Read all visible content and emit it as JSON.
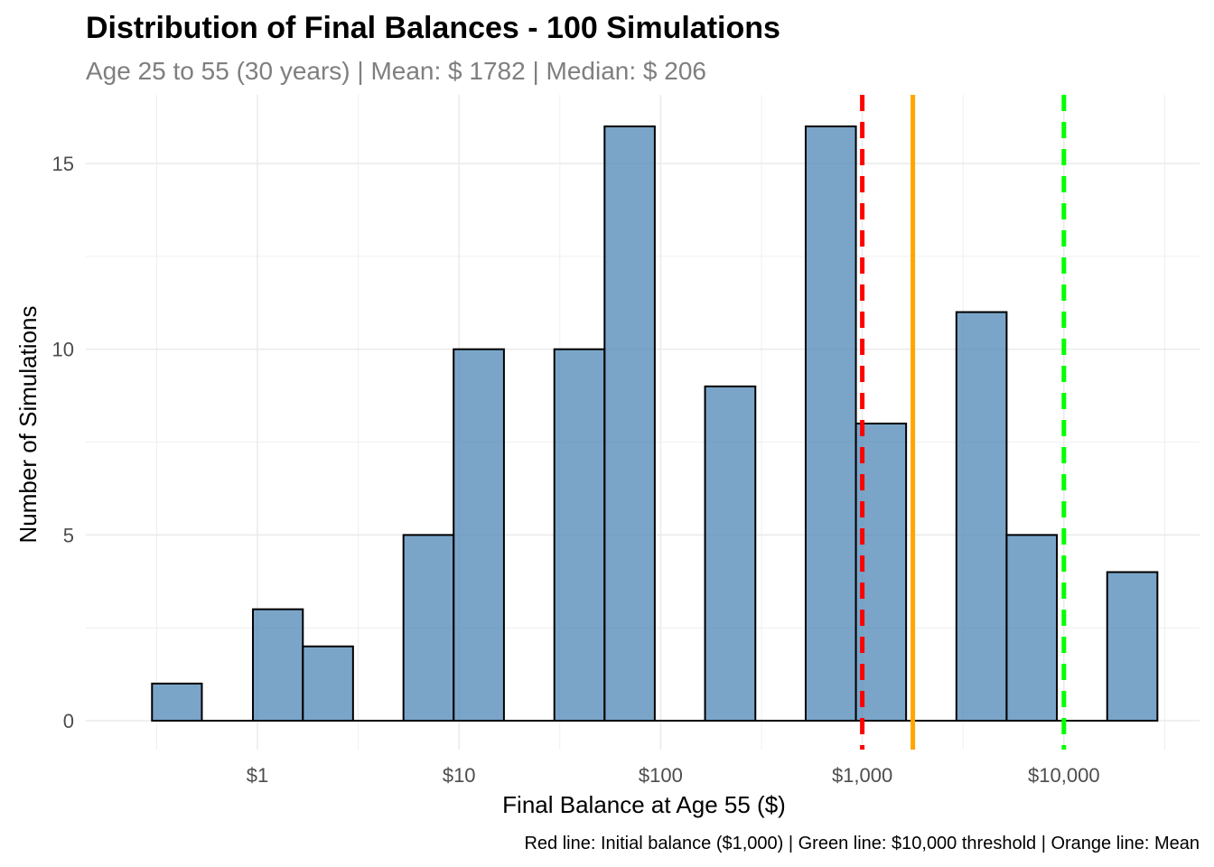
{
  "chart_data": {
    "type": "bar",
    "subtype": "histogram",
    "title": "Distribution of Final Balances - 100 Simulations",
    "subtitle": "Age 25 to 55 (30 years) | Mean: $ 1782 | Median: $ 206",
    "xlabel": "Final Balance at Age 55 ($)",
    "ylabel": "Number of Simulations",
    "caption": "Red line: Initial balance ($1,000) | Green line: $10,000 threshold | Orange line: Mean",
    "x_scale": "log10",
    "x_ticks": [
      {
        "value": 1,
        "label": "$1"
      },
      {
        "value": 10,
        "label": "$10"
      },
      {
        "value": 100,
        "label": "$100"
      },
      {
        "value": 1000,
        "label": "$1,000"
      },
      {
        "value": 10000,
        "label": "$10,000"
      }
    ],
    "y_ticks": [
      {
        "value": 0,
        "label": "0"
      },
      {
        "value": 5,
        "label": "5"
      },
      {
        "value": 10,
        "label": "10"
      },
      {
        "value": 15,
        "label": "15"
      }
    ],
    "ylim": [
      0,
      16.8
    ],
    "bins": [
      {
        "x_from": 0.3,
        "x_to": 0.53,
        "count": 1
      },
      {
        "x_from": 0.95,
        "x_to": 1.68,
        "count": 3
      },
      {
        "x_from": 1.68,
        "x_to": 2.98,
        "count": 2
      },
      {
        "x_from": 5.3,
        "x_to": 9.4,
        "count": 5
      },
      {
        "x_from": 9.4,
        "x_to": 16.7,
        "count": 10
      },
      {
        "x_from": 29.7,
        "x_to": 52.7,
        "count": 10
      },
      {
        "x_from": 52.7,
        "x_to": 93.5,
        "count": 16
      },
      {
        "x_from": 166,
        "x_to": 295,
        "count": 9
      },
      {
        "x_from": 524,
        "x_to": 930,
        "count": 16
      },
      {
        "x_from": 930,
        "x_to": 1650,
        "count": 8
      },
      {
        "x_from": 2930,
        "x_to": 5200,
        "count": 11
      },
      {
        "x_from": 5200,
        "x_to": 9230,
        "count": 5
      },
      {
        "x_from": 16400,
        "x_to": 29100,
        "count": 4
      }
    ],
    "reference_lines": [
      {
        "name": "Initial balance",
        "value": 1000,
        "color": "#ff0000",
        "style": "dashed"
      },
      {
        "name": "Mean",
        "value": 1782,
        "color": "#ffa500",
        "style": "solid"
      },
      {
        "name": "$10,000 threshold",
        "value": 10000,
        "color": "#00ff00",
        "style": "dashed"
      }
    ],
    "bar_fill": "#4682b4",
    "bar_stroke": "#000000",
    "grid": true,
    "legend": "none"
  }
}
